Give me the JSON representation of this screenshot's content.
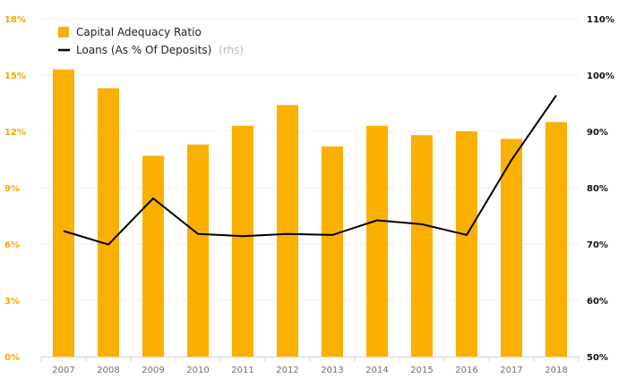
{
  "chart_data": {
    "type": "bar",
    "categories": [
      "2007",
      "2008",
      "2009",
      "2010",
      "2011",
      "2012",
      "2013",
      "2014",
      "2015",
      "2016",
      "2017",
      "2018"
    ],
    "series": [
      {
        "name": "Capital Adequacy Ratio",
        "type": "bar",
        "axis": "left",
        "color": "#f9b000",
        "values": [
          15.3,
          14.3,
          10.7,
          11.3,
          12.3,
          13.4,
          11.2,
          12.3,
          11.8,
          12.0,
          11.6,
          12.5
        ]
      },
      {
        "name": "Loans (As % Of Deposits)",
        "name_suffix": "(rhs)",
        "type": "line",
        "axis": "right",
        "color": "#000000",
        "values": [
          72.3,
          69.9,
          78.1,
          71.8,
          71.4,
          71.8,
          71.6,
          74.2,
          73.5,
          71.6,
          84.9,
          96.4
        ]
      }
    ],
    "y_left": {
      "ylim": [
        0,
        18
      ],
      "ticks": [
        0,
        3,
        6,
        9,
        12,
        15,
        18
      ],
      "tick_labels": [
        "0%",
        "3%",
        "6%",
        "9%",
        "12%",
        "15%",
        "18%"
      ],
      "color": "#f5a800"
    },
    "y_right": {
      "ylim": [
        50,
        110
      ],
      "ticks": [
        50,
        60,
        70,
        80,
        90,
        100,
        110
      ],
      "tick_labels": [
        "50%",
        "60%",
        "70%",
        "80%",
        "90%",
        "100%",
        "110%"
      ],
      "color": "#111111"
    },
    "title": "",
    "xlabel": "",
    "ylabel": "",
    "legend": "top-left"
  }
}
